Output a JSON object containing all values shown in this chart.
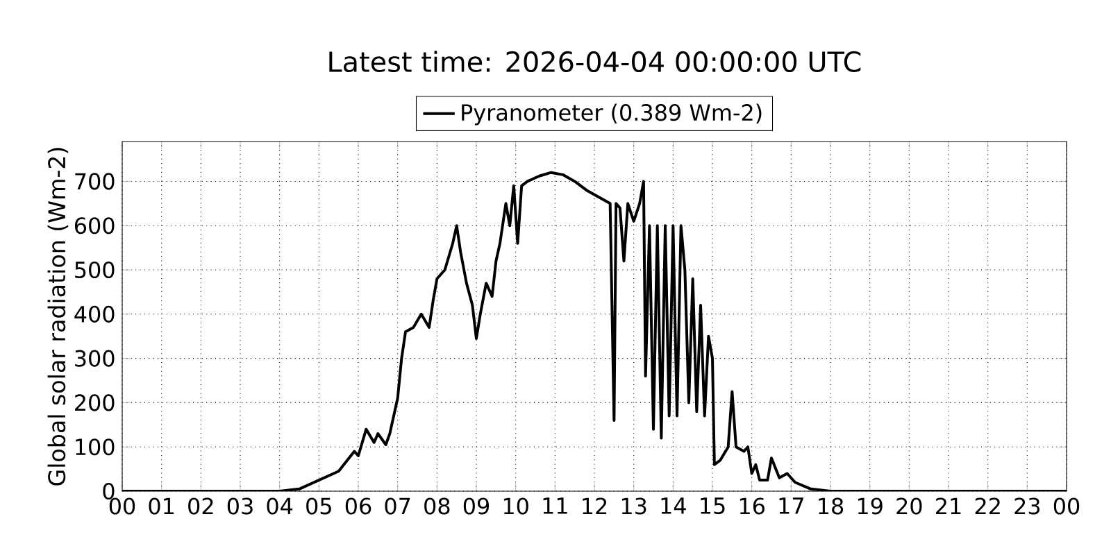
{
  "chart_data": {
    "type": "line",
    "title": "Latest time: 2026-04-04 00:00:00 UTC",
    "ylabel": "Global solar radiation (Wm-2)",
    "legend": "top",
    "grid": true,
    "line_style": "solid",
    "marker": "none",
    "xlim": [
      0,
      24
    ],
    "ylim": [
      0,
      790
    ],
    "xticks": [
      {
        "value": 0,
        "label": "00"
      },
      {
        "value": 1,
        "label": "01"
      },
      {
        "value": 2,
        "label": "02"
      },
      {
        "value": 3,
        "label": "03"
      },
      {
        "value": 4,
        "label": "04"
      },
      {
        "value": 5,
        "label": "05"
      },
      {
        "value": 6,
        "label": "06"
      },
      {
        "value": 7,
        "label": "07"
      },
      {
        "value": 8,
        "label": "08"
      },
      {
        "value": 9,
        "label": "09"
      },
      {
        "value": 10,
        "label": "10"
      },
      {
        "value": 11,
        "label": "11"
      },
      {
        "value": 12,
        "label": "12"
      },
      {
        "value": 13,
        "label": "13"
      },
      {
        "value": 14,
        "label": "14"
      },
      {
        "value": 15,
        "label": "15"
      },
      {
        "value": 16,
        "label": "16"
      },
      {
        "value": 17,
        "label": "17"
      },
      {
        "value": 18,
        "label": "18"
      },
      {
        "value": 19,
        "label": "19"
      },
      {
        "value": 20,
        "label": "20"
      },
      {
        "value": 21,
        "label": "21"
      },
      {
        "value": 22,
        "label": "22"
      },
      {
        "value": 23,
        "label": "23"
      },
      {
        "value": 24,
        "label": "00"
      }
    ],
    "yticks": [
      0,
      100,
      200,
      300,
      400,
      500,
      600,
      700
    ],
    "series": [
      {
        "name": "Pyranometer (0.389 Wm-2)",
        "color": "#000000",
        "x": [
          0,
          4.0,
          4.5,
          5.0,
          5.5,
          5.9,
          6.0,
          6.2,
          6.4,
          6.5,
          6.7,
          6.8,
          7.0,
          7.1,
          7.2,
          7.4,
          7.6,
          7.8,
          7.9,
          8.0,
          8.2,
          8.4,
          8.5,
          8.6,
          8.75,
          8.9,
          9.0,
          9.1,
          9.25,
          9.4,
          9.5,
          9.6,
          9.75,
          9.85,
          9.95,
          10.05,
          10.15,
          10.3,
          10.6,
          10.9,
          11.2,
          11.5,
          11.8,
          12.1,
          12.4,
          12.5,
          12.55,
          12.65,
          12.75,
          12.85,
          13.0,
          13.15,
          13.25,
          13.3,
          13.4,
          13.5,
          13.6,
          13.7,
          13.8,
          13.9,
          14.0,
          14.1,
          14.2,
          14.3,
          14.4,
          14.5,
          14.6,
          14.7,
          14.8,
          14.9,
          15.0,
          15.05,
          15.2,
          15.4,
          15.5,
          15.6,
          15.8,
          15.9,
          16.0,
          16.1,
          16.2,
          16.4,
          16.5,
          16.7,
          16.9,
          17.1,
          17.5,
          18.0,
          24
        ],
        "values": [
          0,
          0,
          5,
          25,
          45,
          90,
          80,
          140,
          110,
          130,
          105,
          130,
          210,
          300,
          360,
          370,
          400,
          370,
          430,
          480,
          500,
          560,
          600,
          540,
          470,
          420,
          345,
          400,
          470,
          440,
          520,
          560,
          650,
          600,
          690,
          560,
          690,
          700,
          712,
          720,
          715,
          700,
          680,
          665,
          650,
          160,
          650,
          640,
          520,
          650,
          610,
          650,
          700,
          260,
          600,
          140,
          600,
          120,
          600,
          170,
          600,
          170,
          600,
          500,
          200,
          480,
          180,
          420,
          170,
          350,
          300,
          60,
          70,
          100,
          225,
          100,
          90,
          100,
          40,
          60,
          25,
          25,
          75,
          30,
          40,
          20,
          5,
          0,
          0
        ]
      }
    ]
  }
}
